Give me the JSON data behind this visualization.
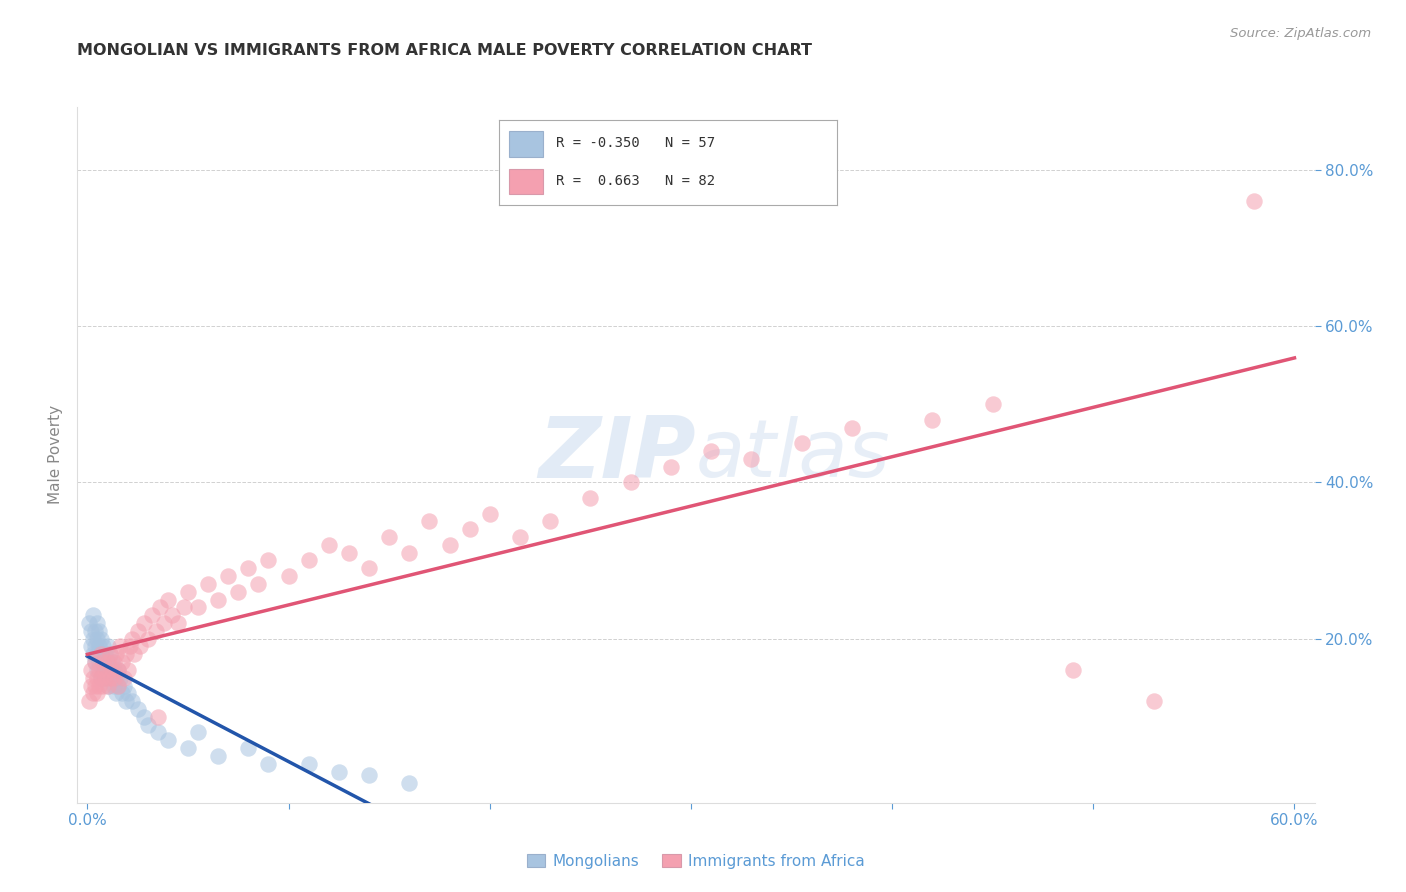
{
  "title": "MONGOLIAN VS IMMIGRANTS FROM AFRICA MALE POVERTY CORRELATION CHART",
  "source": "Source: ZipAtlas.com",
  "ylabel": "Male Poverty",
  "xlim": [
    -0.005,
    0.61
  ],
  "ylim": [
    -0.01,
    0.88
  ],
  "xtick_labels": [
    "0.0%",
    "",
    "",
    "",
    "",
    "",
    "60.0%"
  ],
  "xtick_values": [
    0.0,
    0.1,
    0.2,
    0.3,
    0.4,
    0.5,
    0.6
  ],
  "ytick_labels": [
    "20.0%",
    "40.0%",
    "60.0%",
    "80.0%"
  ],
  "ytick_values": [
    0.2,
    0.4,
    0.6,
    0.8
  ],
  "mongolian_color": "#a8c4e0",
  "africa_color": "#f4a0b0",
  "mongolian_line_color": "#2255aa",
  "africa_line_color": "#e05575",
  "mongolian_R": -0.35,
  "mongolian_N": 57,
  "africa_R": 0.663,
  "africa_N": 82,
  "background_color": "#ffffff",
  "grid_color": "#cccccc",
  "tick_color": "#5b9bd5",
  "title_color": "#333333",
  "watermark_color": "#d0dff0",
  "mongolian_x": [
    0.001,
    0.002,
    0.002,
    0.003,
    0.003,
    0.003,
    0.004,
    0.004,
    0.004,
    0.005,
    0.005,
    0.005,
    0.005,
    0.006,
    0.006,
    0.006,
    0.007,
    0.007,
    0.007,
    0.008,
    0.008,
    0.008,
    0.009,
    0.009,
    0.01,
    0.01,
    0.01,
    0.011,
    0.011,
    0.012,
    0.012,
    0.013,
    0.013,
    0.014,
    0.014,
    0.015,
    0.015,
    0.016,
    0.017,
    0.018,
    0.019,
    0.02,
    0.022,
    0.025,
    0.028,
    0.03,
    0.035,
    0.04,
    0.05,
    0.055,
    0.065,
    0.08,
    0.09,
    0.11,
    0.125,
    0.14,
    0.16
  ],
  "mongolian_y": [
    0.22,
    0.21,
    0.19,
    0.2,
    0.18,
    0.23,
    0.17,
    0.21,
    0.19,
    0.16,
    0.2,
    0.18,
    0.22,
    0.17,
    0.19,
    0.21,
    0.15,
    0.18,
    0.2,
    0.17,
    0.19,
    0.16,
    0.18,
    0.15,
    0.17,
    0.14,
    0.19,
    0.16,
    0.18,
    0.15,
    0.17,
    0.14,
    0.16,
    0.15,
    0.13,
    0.16,
    0.14,
    0.15,
    0.13,
    0.14,
    0.12,
    0.13,
    0.12,
    0.11,
    0.1,
    0.09,
    0.08,
    0.07,
    0.06,
    0.08,
    0.05,
    0.06,
    0.04,
    0.04,
    0.03,
    0.025,
    0.015
  ],
  "africa_x": [
    0.001,
    0.002,
    0.002,
    0.003,
    0.003,
    0.004,
    0.004,
    0.005,
    0.005,
    0.006,
    0.006,
    0.007,
    0.007,
    0.008,
    0.008,
    0.009,
    0.009,
    0.01,
    0.01,
    0.011,
    0.011,
    0.012,
    0.013,
    0.013,
    0.014,
    0.015,
    0.015,
    0.016,
    0.017,
    0.018,
    0.019,
    0.02,
    0.021,
    0.022,
    0.023,
    0.025,
    0.026,
    0.028,
    0.03,
    0.032,
    0.034,
    0.036,
    0.038,
    0.04,
    0.042,
    0.045,
    0.048,
    0.05,
    0.055,
    0.06,
    0.065,
    0.07,
    0.075,
    0.08,
    0.085,
    0.09,
    0.1,
    0.11,
    0.12,
    0.13,
    0.14,
    0.15,
    0.16,
    0.17,
    0.18,
    0.19,
    0.2,
    0.215,
    0.23,
    0.25,
    0.27,
    0.29,
    0.31,
    0.33,
    0.355,
    0.38,
    0.035,
    0.42,
    0.45,
    0.49,
    0.53,
    0.58
  ],
  "africa_y": [
    0.12,
    0.14,
    0.16,
    0.13,
    0.15,
    0.14,
    0.17,
    0.15,
    0.13,
    0.16,
    0.14,
    0.18,
    0.15,
    0.14,
    0.17,
    0.15,
    0.16,
    0.14,
    0.17,
    0.15,
    0.18,
    0.16,
    0.17,
    0.15,
    0.18,
    0.14,
    0.16,
    0.19,
    0.17,
    0.15,
    0.18,
    0.16,
    0.19,
    0.2,
    0.18,
    0.21,
    0.19,
    0.22,
    0.2,
    0.23,
    0.21,
    0.24,
    0.22,
    0.25,
    0.23,
    0.22,
    0.24,
    0.26,
    0.24,
    0.27,
    0.25,
    0.28,
    0.26,
    0.29,
    0.27,
    0.3,
    0.28,
    0.3,
    0.32,
    0.31,
    0.29,
    0.33,
    0.31,
    0.35,
    0.32,
    0.34,
    0.36,
    0.33,
    0.35,
    0.38,
    0.4,
    0.42,
    0.44,
    0.43,
    0.45,
    0.47,
    0.1,
    0.48,
    0.5,
    0.16,
    0.12,
    0.76
  ]
}
